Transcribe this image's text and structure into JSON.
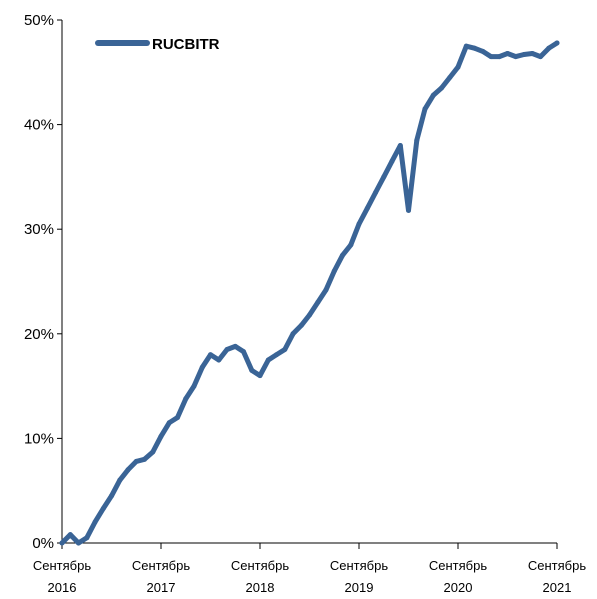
{
  "chart_data": {
    "type": "line",
    "title": "",
    "xlabel": "",
    "ylabel": "",
    "ylim": [
      0,
      50
    ],
    "y_ticks": [
      0,
      10,
      20,
      30,
      40,
      50
    ],
    "y_tick_labels": [
      "0%",
      "10%",
      "20%",
      "30%",
      "40%",
      "50%"
    ],
    "x_range": [
      "2016-09",
      "2021-09"
    ],
    "x_ticks": [
      {
        "date": "2016-09",
        "line1": "Сентябрь",
        "line2": "2016"
      },
      {
        "date": "2017-09",
        "line1": "Сентябрь",
        "line2": "2017"
      },
      {
        "date": "2018-09",
        "line1": "Сентябрь",
        "line2": "2018"
      },
      {
        "date": "2019-09",
        "line1": "Сентябрь",
        "line2": "2019"
      },
      {
        "date": "2020-09",
        "line1": "Сентябрь",
        "line2": "2020"
      },
      {
        "date": "2021-09",
        "line1": "Сентябрь",
        "line2": "2021"
      }
    ],
    "grid": false,
    "legend_position": "top-left",
    "series": [
      {
        "name": "RUCBITR",
        "color": "#3a6496",
        "x": [
          "2016-09",
          "2016-10",
          "2016-11",
          "2016-12",
          "2017-01",
          "2017-02",
          "2017-03",
          "2017-04",
          "2017-05",
          "2017-06",
          "2017-07",
          "2017-08",
          "2017-09",
          "2017-10",
          "2017-11",
          "2017-12",
          "2018-01",
          "2018-02",
          "2018-03",
          "2018-04",
          "2018-05",
          "2018-06",
          "2018-07",
          "2018-08",
          "2018-09",
          "2018-10",
          "2018-11",
          "2018-12",
          "2019-01",
          "2019-02",
          "2019-03",
          "2019-04",
          "2019-05",
          "2019-06",
          "2019-07",
          "2019-08",
          "2019-09",
          "2019-10",
          "2019-11",
          "2019-12",
          "2020-01",
          "2020-02",
          "2020-03",
          "2020-04",
          "2020-05",
          "2020-06",
          "2020-07",
          "2020-08",
          "2020-09",
          "2020-10",
          "2020-11",
          "2020-12",
          "2021-01",
          "2021-02",
          "2021-03",
          "2021-04",
          "2021-05",
          "2021-06",
          "2021-07",
          "2021-08",
          "2021-09"
        ],
        "values": [
          0.0,
          0.8,
          0.0,
          0.5,
          2.0,
          3.3,
          4.5,
          6.0,
          7.0,
          7.8,
          8.0,
          8.7,
          10.2,
          11.5,
          12.0,
          13.8,
          15.0,
          16.8,
          18.0,
          17.5,
          18.5,
          18.8,
          18.3,
          16.5,
          16.0,
          17.5,
          18.0,
          18.5,
          20.0,
          20.8,
          21.8,
          23.0,
          24.2,
          26.0,
          27.5,
          28.5,
          30.5,
          32.0,
          33.5,
          35.0,
          36.5,
          38.0,
          31.8,
          38.5,
          41.5,
          42.8,
          43.5,
          44.5,
          45.5,
          47.5,
          47.3,
          47.0,
          46.5,
          46.5,
          46.8,
          46.5,
          46.7,
          46.8,
          46.5,
          47.3,
          47.8
        ]
      }
    ]
  }
}
